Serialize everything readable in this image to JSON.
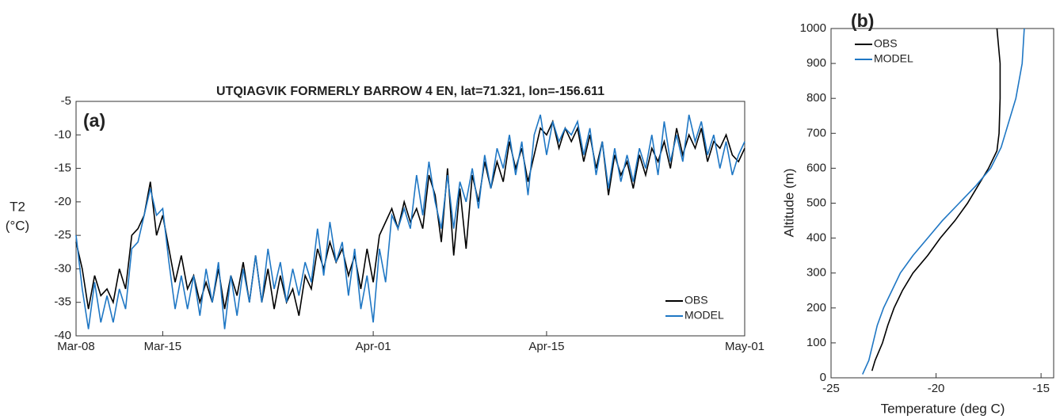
{
  "chart_data": [
    {
      "type": "line",
      "panel_label": "(a)",
      "title": "UTQIAGVIK FORMERLY BARROW 4 EN, lat=71.321, lon=-156.611",
      "ylabel": [
        "T2",
        "(°C)"
      ],
      "x": [
        0,
        0.5,
        1,
        1.5,
        2,
        2.5,
        3,
        3.5,
        4,
        4.5,
        5,
        5.5,
        6,
        6.5,
        7,
        7.5,
        8,
        8.5,
        9,
        9.5,
        10,
        10.5,
        11,
        11.5,
        12,
        12.5,
        13,
        13.5,
        14,
        14.5,
        15,
        15.5,
        16,
        16.5,
        17,
        17.5,
        18,
        18.5,
        19,
        19.5,
        20,
        20.5,
        21,
        21.5,
        22,
        22.5,
        23,
        23.5,
        24,
        24.5,
        25,
        25.5,
        26,
        26.5,
        27,
        27.5,
        28,
        28.5,
        29,
        29.5,
        30,
        30.5,
        31,
        31.5,
        32,
        32.5,
        33,
        33.5,
        34,
        34.5,
        35,
        35.5,
        36,
        36.5,
        37,
        37.5,
        38,
        38.5,
        39,
        39.5,
        40,
        40.5,
        41,
        41.5,
        42,
        42.5,
        43,
        43.5,
        44,
        44.5,
        45,
        45.5,
        46,
        46.5,
        47,
        47.5,
        48,
        48.5,
        49,
        49.5,
        50,
        50.5,
        51,
        51.5,
        52,
        52.5,
        53,
        53.5,
        54
      ],
      "xlim": [
        0,
        54
      ],
      "xticks": [
        {
          "value": 0,
          "label": "Mar-08"
        },
        {
          "value": 7,
          "label": "Mar-15"
        },
        {
          "value": 24,
          "label": "Apr-01"
        },
        {
          "value": 38,
          "label": "Apr-15"
        },
        {
          "value": 54,
          "label": "May-01"
        }
      ],
      "ylim": [
        -40,
        -5
      ],
      "yticks": [
        -40,
        -35,
        -30,
        -25,
        -20,
        -15,
        -10,
        -5
      ],
      "legend": "lower-right",
      "series": [
        {
          "name": "OBS",
          "color": "#000000",
          "values": [
            -26,
            -30,
            -36,
            -31,
            -34,
            -33,
            -35,
            -30,
            -33,
            -25,
            -24,
            -22,
            -17,
            -25,
            -22,
            -27,
            -32,
            -28,
            -33,
            -31,
            -35,
            -32,
            -35,
            -30,
            -36,
            -31,
            -34,
            -29,
            -35,
            -28,
            -35,
            -30,
            -36,
            -31,
            -35,
            -33,
            -37,
            -31,
            -33,
            -27,
            -30,
            -26,
            -29,
            -27,
            -31,
            -28,
            -33,
            -27,
            -32,
            -25,
            -23,
            -21,
            -24,
            -20,
            -23,
            -21,
            -24,
            -16,
            -19,
            -26,
            -15,
            -28,
            -18,
            -27,
            -16,
            -20,
            -14,
            -18,
            -14,
            -17,
            -11,
            -15,
            -12,
            -17,
            -13,
            -9,
            -10,
            -8,
            -12,
            -9,
            -11,
            -9,
            -14,
            -10,
            -15,
            -11,
            -19,
            -13,
            -16,
            -14,
            -18,
            -13,
            -16,
            -12,
            -14,
            -11,
            -15,
            -9,
            -13,
            -10,
            -12,
            -9,
            -14,
            -11,
            -12,
            -10,
            -13,
            -14,
            -12
          ]
        },
        {
          "name": "MODEL",
          "color": "#1f77c4",
          "values": [
            -25,
            -33,
            -39,
            -32,
            -38,
            -34,
            -38,
            -33,
            -36,
            -27,
            -26,
            -22,
            -18,
            -22,
            -21,
            -29,
            -36,
            -31,
            -36,
            -31,
            -37,
            -30,
            -35,
            -29,
            -39,
            -31,
            -37,
            -30,
            -35,
            -28,
            -35,
            -27,
            -33,
            -29,
            -35,
            -30,
            -34,
            -29,
            -32,
            -24,
            -31,
            -23,
            -29,
            -26,
            -34,
            -27,
            -36,
            -31,
            -38,
            -27,
            -32,
            -22,
            -24,
            -21,
            -24,
            -16,
            -22,
            -14,
            -20,
            -24,
            -16,
            -24,
            -17,
            -20,
            -15,
            -21,
            -13,
            -18,
            -12,
            -15,
            -10,
            -16,
            -11,
            -19,
            -10,
            -7,
            -13,
            -8,
            -11,
            -9,
            -10,
            -8,
            -13,
            -9,
            -16,
            -11,
            -18,
            -12,
            -17,
            -13,
            -17,
            -12,
            -15,
            -10,
            -16,
            -8,
            -14,
            -10,
            -14,
            -7,
            -11,
            -8,
            -13,
            -10,
            -15,
            -11,
            -16,
            -13,
            -11
          ]
        }
      ]
    },
    {
      "type": "line",
      "panel_label": "(b)",
      "xlabel": "Temperature (deg C)",
      "ylabel": "Altitude (m)",
      "xlim": [
        -25,
        -14.4
      ],
      "xticks": [
        -25,
        -20,
        -15
      ],
      "ylim": [
        0,
        1000
      ],
      "yticks": [
        0,
        100,
        200,
        300,
        400,
        500,
        600,
        700,
        800,
        900,
        1000
      ],
      "legend": "upper-left",
      "series": [
        {
          "name": "OBS",
          "color": "#000000",
          "x": [
            -23.05,
            -22.9,
            -22.55,
            -22.3,
            -22.0,
            -21.6,
            -21.1,
            -20.4,
            -19.8,
            -19.1,
            -18.5,
            -18.0,
            -17.5,
            -17.1,
            -17.0,
            -16.95,
            -16.95,
            -17.1
          ],
          "values": [
            20,
            50,
            100,
            150,
            200,
            250,
            300,
            350,
            400,
            450,
            500,
            550,
            600,
            650,
            700,
            800,
            900,
            1000
          ]
        },
        {
          "name": "MODEL",
          "color": "#1f77c4",
          "x": [
            -23.5,
            -23.2,
            -23.0,
            -22.8,
            -22.5,
            -22.1,
            -21.7,
            -21.1,
            -20.4,
            -19.7,
            -18.9,
            -18.1,
            -17.4,
            -16.9,
            -16.7,
            -16.2,
            -15.9,
            -15.8
          ],
          "values": [
            10,
            50,
            100,
            150,
            200,
            250,
            300,
            350,
            400,
            450,
            500,
            550,
            600,
            660,
            700,
            800,
            900,
            1000
          ]
        }
      ]
    }
  ]
}
